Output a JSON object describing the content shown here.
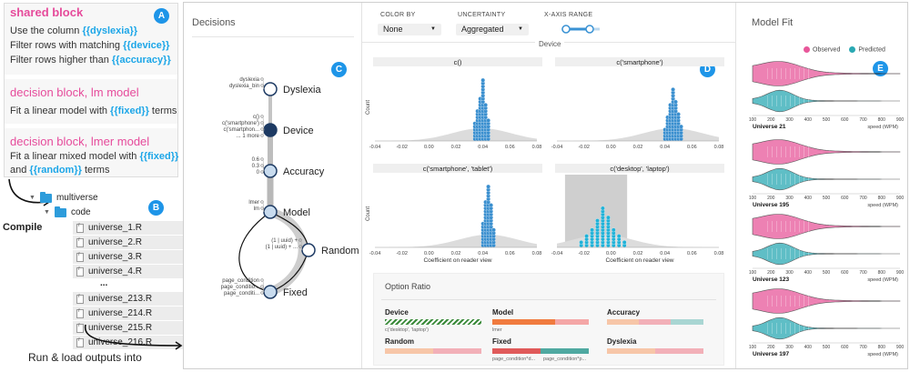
{
  "template": {
    "shared_head": "shared block",
    "shared_lines": [
      {
        "pre": "Use the column ",
        "var": "{{dyslexia}}",
        "post": ""
      },
      {
        "pre": "Filter rows with matching ",
        "var": "{{device}}",
        "post": ""
      },
      {
        "pre": "Filter rows higher than ",
        "var": "{{accuracy}}",
        "post": ""
      }
    ],
    "lm_head": "decision block, lm model",
    "lm_line": {
      "pre": "Fit a linear model with ",
      "var": "{{fixed}}",
      "post": " terms"
    },
    "lmer_head": "decision block, lmer model",
    "lmer_line1": {
      "pre": "Fit a linear mixed model with ",
      "var": "{{fixed}}",
      "post": ""
    },
    "lmer_line2": {
      "pre": "and ",
      "var": "{{random}}",
      "post": " terms"
    }
  },
  "badges": {
    "a": "A",
    "b": "B",
    "c": "C",
    "d": "D",
    "e": "E"
  },
  "tree": {
    "root": "multiverse",
    "folder": "code",
    "files_top": [
      "universe_1.R",
      "universe_2.R",
      "universe_3.R",
      "universe_4.R"
    ],
    "ellipsis": "...",
    "files_bottom": [
      "universe_213.R",
      "universe_214.R",
      "universe_215.R",
      "universe_216.R"
    ]
  },
  "compile_label": "Compile",
  "run_label": "Run & load outputs into",
  "decisions": {
    "title": "Decisions",
    "nodes": [
      {
        "name": "Dyslexia",
        "options": [
          "dyslexia",
          "dyslexia_bin"
        ]
      },
      {
        "name": "Device",
        "options": [
          "c()",
          "c('smartphone')",
          "c('smartphon...",
          "... 1 more"
        ]
      },
      {
        "name": "Accuracy",
        "options": [
          "0.6",
          "0.3",
          "0"
        ]
      },
      {
        "name": "Model",
        "options": [
          "lmer",
          "lm"
        ]
      },
      {
        "name": "Random",
        "options": [
          "(1 | uuid) +",
          "(1 | uuid) + ..."
        ]
      },
      {
        "name": "Fixed",
        "options": [
          "page_condition",
          "page_conditio...",
          "page_conditi..."
        ]
      }
    ]
  },
  "controls": {
    "color_by_label": "COLOR BY",
    "color_by_value": "None",
    "uncertainty_label": "UNCERTAINTY",
    "uncertainty_value": "Aggregated",
    "x_range_label": "X-AXIS RANGE"
  },
  "facet_title": "Device",
  "chart_data": {
    "type": "bar",
    "panels": [
      {
        "title": "c()",
        "values": [
          0.034,
          0.036,
          0.038,
          0.04,
          0.042,
          0.044
        ],
        "heights": [
          6,
          10,
          14,
          20,
          12,
          7
        ]
      },
      {
        "title": "c('smartphone')",
        "values": [
          0.04,
          0.042,
          0.044,
          0.046,
          0.048,
          0.05,
          0.052
        ],
        "heights": [
          4,
          8,
          12,
          17,
          13,
          9,
          5
        ]
      },
      {
        "title": "c('smartphone', 'tablet')",
        "values": [
          0.04,
          0.042,
          0.044,
          0.046,
          0.048
        ],
        "heights": [
          8,
          15,
          20,
          14,
          6
        ]
      },
      {
        "title": "c('desktop', 'laptop')",
        "values": [
          -0.022,
          -0.018,
          -0.014,
          -0.01,
          -0.006,
          -0.002,
          0.002,
          0.006,
          0.01
        ],
        "heights": [
          2,
          4,
          6,
          9,
          13,
          10,
          6,
          4,
          2
        ]
      }
    ],
    "xlabel": "Coefficient on reader view",
    "ylabel": "Count",
    "xticks": [
      "-0.04",
      "-0.02",
      "0.00",
      "0.02",
      "0.04",
      "0.06",
      "0.08"
    ],
    "xlim": [
      -0.04,
      0.08
    ]
  },
  "option_ratio": {
    "title": "Option Ratio",
    "items": [
      {
        "name": "Device",
        "sub": "c('desktop', 'laptop')",
        "segments": [
          {
            "w": 1,
            "c": "hatch"
          }
        ]
      },
      {
        "name": "Model",
        "sub": "lmer",
        "segments": [
          {
            "w": 0.65,
            "c": "#f07b3f"
          },
          {
            "w": 0.35,
            "c": "#f4a7a7"
          }
        ]
      },
      {
        "name": "Accuracy",
        "sub": "",
        "segments": [
          {
            "w": 0.33,
            "c": "#f7c6a8"
          },
          {
            "w": 0.33,
            "c": "#f2b0b8"
          },
          {
            "w": 0.34,
            "c": "#a9d6d3"
          }
        ]
      },
      {
        "name": "Random",
        "sub": "",
        "segments": [
          {
            "w": 0.5,
            "c": "#f7c6a8"
          },
          {
            "w": 0.5,
            "c": "#f2b0b8"
          }
        ]
      },
      {
        "name": "Fixed",
        "sub": "page_condition*d...",
        "sub2": "page_condition*p...",
        "segments": [
          {
            "w": 0.5,
            "c": "#e05a5a"
          },
          {
            "w": 0.5,
            "c": "#4fa9a1"
          }
        ]
      },
      {
        "name": "Dyslexia",
        "sub": "",
        "segments": [
          {
            "w": 0.5,
            "c": "#f7c6a8"
          },
          {
            "w": 0.5,
            "c": "#f2b0b8"
          }
        ]
      }
    ]
  },
  "model_fit": {
    "title": "Model Fit",
    "legend_observed": "Observed",
    "legend_predicted": "Predicted",
    "observed_color": "#e8579a",
    "predicted_color": "#2aa9b3",
    "axis_ticks": [
      "100",
      "200",
      "300",
      "400",
      "500",
      "600",
      "700",
      "800",
      "900"
    ],
    "axis_label": "speed (WPM)",
    "universes": [
      "Universe 21",
      "Universe 195",
      "Universe 123",
      "Universe 197"
    ]
  }
}
